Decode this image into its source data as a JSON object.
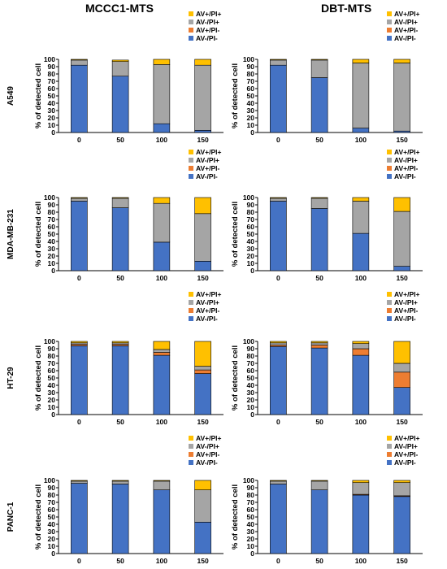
{
  "columns": [
    "MCCC1-MTS",
    "DBT-MTS"
  ],
  "rows": [
    "A549",
    "MDA-MB-231",
    "HT-29",
    "PANC-1"
  ],
  "ylabel": "% of detected cell",
  "legend": [
    "AV+/PI+",
    "AV-/PI+",
    "AV+/PI-",
    "AV-/PI-"
  ],
  "colors": {
    "AV-/PI-": "#4472C4",
    "AV+/PI-": "#ED7D31",
    "AV-/PI+": "#A5A5A5",
    "AV+/PI+": "#FFC000"
  },
  "chart_data": [
    {
      "type": "bar",
      "stacked": true,
      "cell": "A549 / MCCC1-MTS",
      "categories": [
        "0",
        "50",
        "100",
        "150"
      ],
      "ylim": [
        0,
        100
      ],
      "yticks": [
        0,
        10,
        20,
        30,
        40,
        50,
        60,
        70,
        80,
        90,
        100
      ],
      "series": [
        {
          "name": "AV-/PI-",
          "values": [
            92,
            77,
            12,
            3
          ]
        },
        {
          "name": "AV+/PI-",
          "values": [
            0,
            0,
            0,
            0
          ]
        },
        {
          "name": "AV-/PI+",
          "values": [
            7,
            20,
            81,
            89
          ]
        },
        {
          "name": "AV+/PI+",
          "values": [
            1,
            2,
            7,
            8
          ]
        }
      ]
    },
    {
      "type": "bar",
      "stacked": true,
      "cell": "A549 / DBT-MTS",
      "categories": [
        "0",
        "50",
        "100",
        "150"
      ],
      "ylim": [
        0,
        100
      ],
      "yticks": [
        0,
        10,
        20,
        30,
        40,
        50,
        60,
        70,
        80,
        90,
        100
      ],
      "series": [
        {
          "name": "AV-/PI-",
          "values": [
            92,
            75,
            6,
            2
          ]
        },
        {
          "name": "AV+/PI-",
          "values": [
            0,
            0,
            0,
            0
          ]
        },
        {
          "name": "AV-/PI+",
          "values": [
            7,
            24,
            89,
            93
          ]
        },
        {
          "name": "AV+/PI+",
          "values": [
            1,
            1,
            5,
            5
          ]
        }
      ]
    },
    {
      "type": "bar",
      "stacked": true,
      "cell": "MDA-MB-231 / MCCC1-MTS",
      "categories": [
        "0",
        "50",
        "100",
        "150"
      ],
      "ylim": [
        0,
        100
      ],
      "yticks": [
        0,
        10,
        20,
        30,
        40,
        50,
        60,
        70,
        80,
        90,
        100
      ],
      "series": [
        {
          "name": "AV-/PI-",
          "values": [
            95,
            86,
            39,
            13
          ]
        },
        {
          "name": "AV+/PI-",
          "values": [
            0,
            0,
            0,
            0
          ]
        },
        {
          "name": "AV-/PI+",
          "values": [
            4,
            13,
            53,
            65
          ]
        },
        {
          "name": "AV+/PI+",
          "values": [
            1,
            1,
            8,
            22
          ]
        }
      ]
    },
    {
      "type": "bar",
      "stacked": true,
      "cell": "MDA-MB-231 / DBT-MTS",
      "categories": [
        "0",
        "50",
        "100",
        "150"
      ],
      "ylim": [
        0,
        100
      ],
      "yticks": [
        0,
        10,
        20,
        30,
        40,
        50,
        60,
        70,
        80,
        90,
        100
      ],
      "series": [
        {
          "name": "AV-/PI-",
          "values": [
            95,
            85,
            51,
            6
          ]
        },
        {
          "name": "AV+/PI-",
          "values": [
            0,
            0,
            0,
            0
          ]
        },
        {
          "name": "AV-/PI+",
          "values": [
            4,
            14,
            44,
            75
          ]
        },
        {
          "name": "AV+/PI+",
          "values": [
            1,
            1,
            5,
            19
          ]
        }
      ]
    },
    {
      "type": "bar",
      "stacked": true,
      "cell": "HT-29 / MCCC1-MTS",
      "categories": [
        "0",
        "50",
        "100",
        "150"
      ],
      "ylim": [
        0,
        100
      ],
      "yticks": [
        0,
        10,
        20,
        30,
        40,
        50,
        60,
        70,
        80,
        90,
        100
      ],
      "series": [
        {
          "name": "AV-/PI-",
          "values": [
            94,
            94,
            81,
            56
          ]
        },
        {
          "name": "AV+/PI-",
          "values": [
            2,
            2,
            4,
            5
          ]
        },
        {
          "name": "AV-/PI+",
          "values": [
            2,
            2,
            4,
            5
          ]
        },
        {
          "name": "AV+/PI+",
          "values": [
            2,
            2,
            11,
            34
          ]
        }
      ]
    },
    {
      "type": "bar",
      "stacked": true,
      "cell": "HT-29 / DBT-MTS",
      "categories": [
        "0",
        "50",
        "100",
        "150"
      ],
      "ylim": [
        0,
        100
      ],
      "yticks": [
        0,
        10,
        20,
        30,
        40,
        50,
        60,
        70,
        80,
        90,
        100
      ],
      "series": [
        {
          "name": "AV-/PI-",
          "values": [
            93,
            91,
            81,
            37
          ]
        },
        {
          "name": "AV+/PI-",
          "values": [
            2,
            4,
            9,
            21
          ]
        },
        {
          "name": "AV-/PI+",
          "values": [
            3,
            3,
            7,
            12
          ]
        },
        {
          "name": "AV+/PI+",
          "values": [
            2,
            2,
            3,
            30
          ]
        }
      ]
    },
    {
      "type": "bar",
      "stacked": true,
      "cell": "PANC-1 / MCCC1-MTS",
      "categories": [
        "0",
        "50",
        "100",
        "150"
      ],
      "ylim": [
        0,
        100
      ],
      "yticks": [
        0,
        10,
        20,
        30,
        40,
        50,
        60,
        70,
        80,
        90,
        100
      ],
      "series": [
        {
          "name": "AV-/PI-",
          "values": [
            96,
            95,
            87,
            43
          ]
        },
        {
          "name": "AV+/PI-",
          "values": [
            0,
            0,
            0,
            0
          ]
        },
        {
          "name": "AV-/PI+",
          "values": [
            3,
            4,
            12,
            44
          ]
        },
        {
          "name": "AV+/PI+",
          "values": [
            1,
            1,
            1,
            13
          ]
        }
      ]
    },
    {
      "type": "bar",
      "stacked": true,
      "cell": "PANC-1 / DBT-MTS",
      "categories": [
        "0",
        "50",
        "100",
        "150"
      ],
      "ylim": [
        0,
        100
      ],
      "yticks": [
        0,
        10,
        20,
        30,
        40,
        50,
        60,
        70,
        80,
        90,
        100
      ],
      "series": [
        {
          "name": "AV-/PI-",
          "values": [
            95,
            87,
            80,
            78
          ]
        },
        {
          "name": "AV+/PI-",
          "values": [
            0,
            0,
            1,
            1
          ]
        },
        {
          "name": "AV-/PI+",
          "values": [
            4,
            12,
            16,
            18
          ]
        },
        {
          "name": "AV+/PI+",
          "values": [
            1,
            1,
            3,
            3
          ]
        }
      ]
    }
  ]
}
